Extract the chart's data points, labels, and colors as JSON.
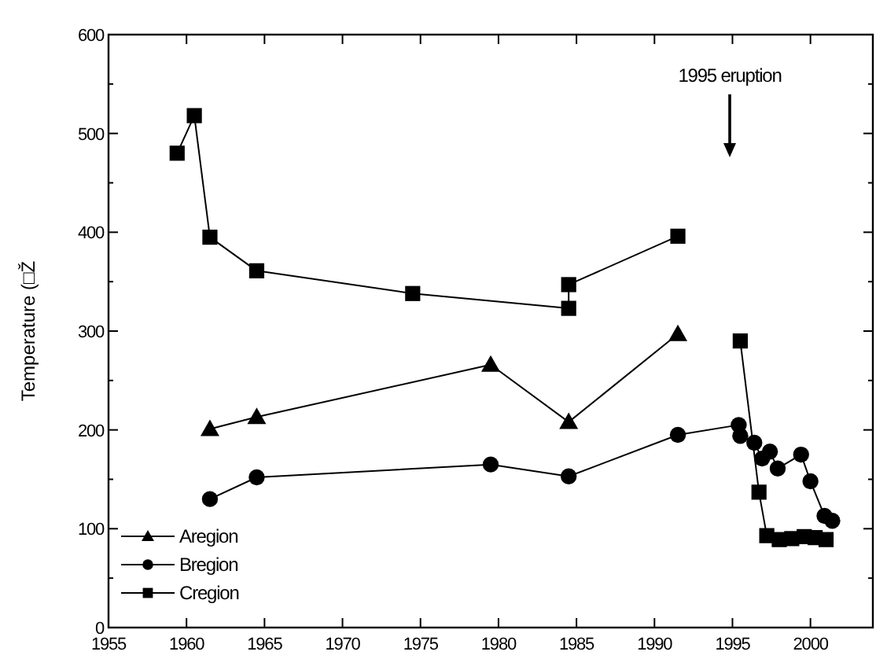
{
  "chart_data": {
    "type": "line",
    "ylabel": "Temperature (□Ž",
    "xlim": [
      1955,
      2004
    ],
    "xticks": [
      1955,
      1960,
      1965,
      1970,
      1975,
      1980,
      1985,
      1990,
      1995,
      2000
    ],
    "ylim": [
      0,
      600
    ],
    "yticks": [
      0,
      {
        "value": 50,
        "label": null
      },
      100,
      {
        "value": 150,
        "label": null
      },
      200,
      {
        "value": 250,
        "label": null
      },
      300,
      {
        "value": 350,
        "label": null
      },
      400,
      {
        "value": 450,
        "label": null
      },
      500,
      {
        "value": 550,
        "label": null
      },
      600
    ],
    "legend": "bottom left",
    "grid": false,
    "series": [
      {
        "name": "Aregion",
        "color": "#000000",
        "marker": "triangle",
        "x": [
          1961.5,
          1964.5,
          1979.5,
          1984.5,
          1991.5
        ],
        "values": [
          201,
          213,
          266,
          208,
          297
        ]
      },
      {
        "name": "Bregion",
        "color": "#000000",
        "marker": "circle",
        "x": [
          1961.5,
          1964.5,
          1979.5,
          1984.5,
          1991.5,
          1995.4,
          1995.5,
          1996.4,
          1996.9,
          1997.4,
          1997.9,
          1999.4,
          2000.0,
          2000.9,
          2001.4
        ],
        "values": [
          130,
          152,
          165,
          153,
          195,
          205,
          194,
          187,
          171,
          178,
          161,
          175,
          148,
          113,
          108
        ]
      },
      {
        "name": "Cregion",
        "color": "#000000",
        "marker": "square",
        "x": [
          1959.4,
          1960.5,
          1961.5,
          1964.5,
          1974.5,
          1984.5,
          1984.5,
          1991.5,
          1993,
          1995.5,
          1996.7,
          1997.2,
          1998,
          1998.8,
          1999.6,
          2000.3,
          2001
        ],
        "values": [
          480,
          518,
          395,
          361,
          338,
          323,
          347,
          396,
          null,
          290,
          137,
          93,
          89,
          90,
          92,
          91,
          89
        ]
      }
    ],
    "annotations": [
      "1995 eruption"
    ]
  }
}
